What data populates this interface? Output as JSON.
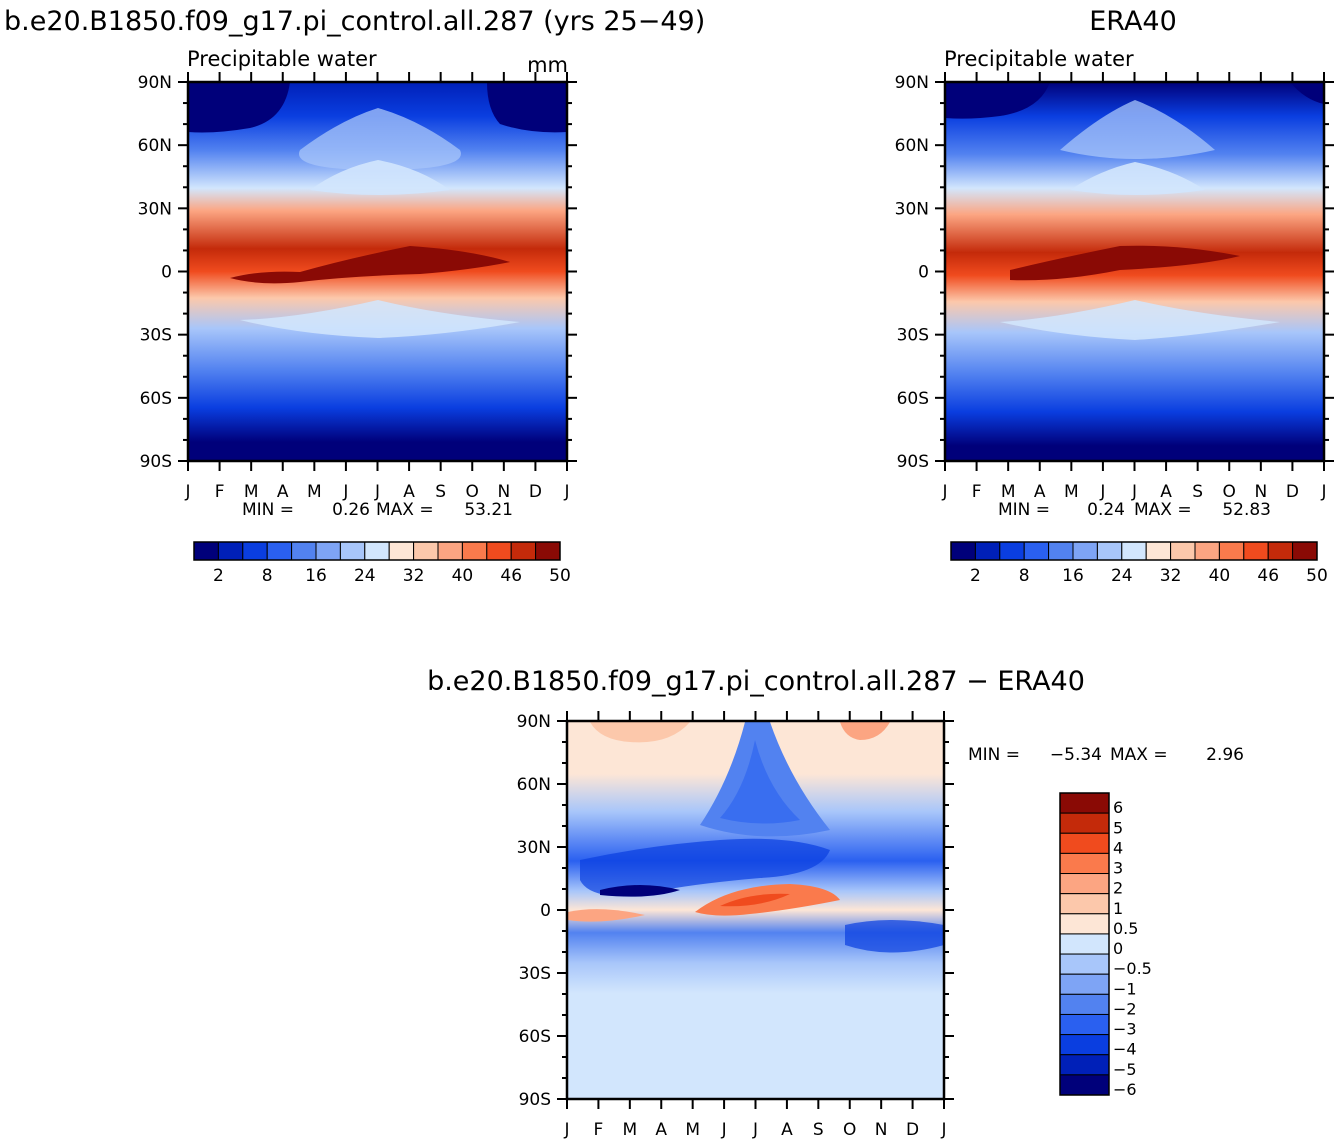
{
  "panels": {
    "left": {
      "title": "b.e20.B1850.f09_g17.pi_control.all.287 (yrs 25−49)",
      "subtitle": "Precipitable water",
      "units": "mm",
      "stats": {
        "min_label": "MIN =",
        "min_value": "0.26",
        "max_label": "MAX =",
        "max_value": "53.21"
      }
    },
    "right": {
      "title": "ERA40",
      "subtitle": "Precipitable water",
      "stats": {
        "min_label": "MIN =",
        "min_value": "0.24",
        "max_label": "MAX =",
        "max_value": "52.83"
      }
    },
    "diff": {
      "title": "b.e20.B1850.f09_g17.pi_control.all.287  −  ERA40",
      "stats": {
        "min_label": "MIN =",
        "min_value": "−5.34",
        "max_label": "MAX =",
        "max_value": "2.96"
      }
    }
  },
  "axes": {
    "y_ticks": [
      "90N",
      "60N",
      "30N",
      "0",
      "30S",
      "60S",
      "90S"
    ],
    "x_ticks": [
      "J",
      "F",
      "M",
      "A",
      "M",
      "J",
      "J",
      "A",
      "S",
      "O",
      "N",
      "D",
      "J"
    ]
  },
  "colorbars": {
    "abs": {
      "colors": [
        "#00007a",
        "#0020b8",
        "#0a3ee0",
        "#2a60f0",
        "#5282f0",
        "#7ea4f5",
        "#a8c6fa",
        "#d2e6fd",
        "#fde6d6",
        "#fcc8ab",
        "#fca582",
        "#fa7a4c",
        "#f04b1e",
        "#c42a0a",
        "#8a0a05"
      ],
      "labels": [
        "2",
        "8",
        "16",
        "24",
        "32",
        "40",
        "46",
        "50"
      ]
    },
    "diff": {
      "colors": [
        "#8a0a05",
        "#c42a0a",
        "#f04b1e",
        "#fa7a4c",
        "#fca582",
        "#fcc8ab",
        "#fde6d6",
        "#d2e6fd",
        "#a8c6fa",
        "#7ea4f5",
        "#5282f0",
        "#2a60f0",
        "#0a3ee0",
        "#0020b8",
        "#00007a"
      ],
      "labels": [
        "6",
        "5",
        "4",
        "3",
        "2",
        "1",
        "0.5",
        "0",
        "−0.5",
        "−1",
        "−2",
        "−3",
        "−4",
        "−5",
        "−6"
      ]
    }
  },
  "chart_data": [
    {
      "type": "heatmap",
      "title": "b.e20.B1850.f09_g17.pi_control.all.287 (yrs 25−49)",
      "subtitle": "Precipitable water",
      "units": "mm",
      "x": [
        "J",
        "F",
        "M",
        "A",
        "M",
        "J",
        "J",
        "A",
        "S",
        "O",
        "N",
        "D",
        "J"
      ],
      "y": [
        "90S",
        "60S",
        "30S",
        "0",
        "30N",
        "60N",
        "90N"
      ],
      "levels": [
        2,
        4,
        8,
        12,
        16,
        20,
        24,
        28,
        32,
        36,
        40,
        44,
        46,
        48,
        50
      ],
      "min": 0.26,
      "max": 53.21
    },
    {
      "type": "heatmap",
      "title": "ERA40",
      "subtitle": "Precipitable water",
      "x": [
        "J",
        "F",
        "M",
        "A",
        "M",
        "J",
        "J",
        "A",
        "S",
        "O",
        "N",
        "D",
        "J"
      ],
      "y": [
        "90S",
        "60S",
        "30S",
        "0",
        "30N",
        "60N",
        "90N"
      ],
      "levels": [
        2,
        4,
        8,
        12,
        16,
        20,
        24,
        28,
        32,
        36,
        40,
        44,
        46,
        48,
        50
      ],
      "min": 0.24,
      "max": 52.83
    },
    {
      "type": "heatmap",
      "title": "b.e20.B1850.f09_g17.pi_control.all.287  −  ERA40",
      "x": [
        "J",
        "F",
        "M",
        "A",
        "M",
        "J",
        "J",
        "A",
        "S",
        "O",
        "N",
        "D",
        "J"
      ],
      "y": [
        "90S",
        "60S",
        "30S",
        "0",
        "30N",
        "60N",
        "90N"
      ],
      "levels": [
        -6,
        -5,
        -4,
        -3,
        -2,
        -1,
        -0.5,
        0,
        0.5,
        1,
        2,
        3,
        4,
        5,
        6
      ],
      "min": -5.34,
      "max": 2.96
    }
  ]
}
